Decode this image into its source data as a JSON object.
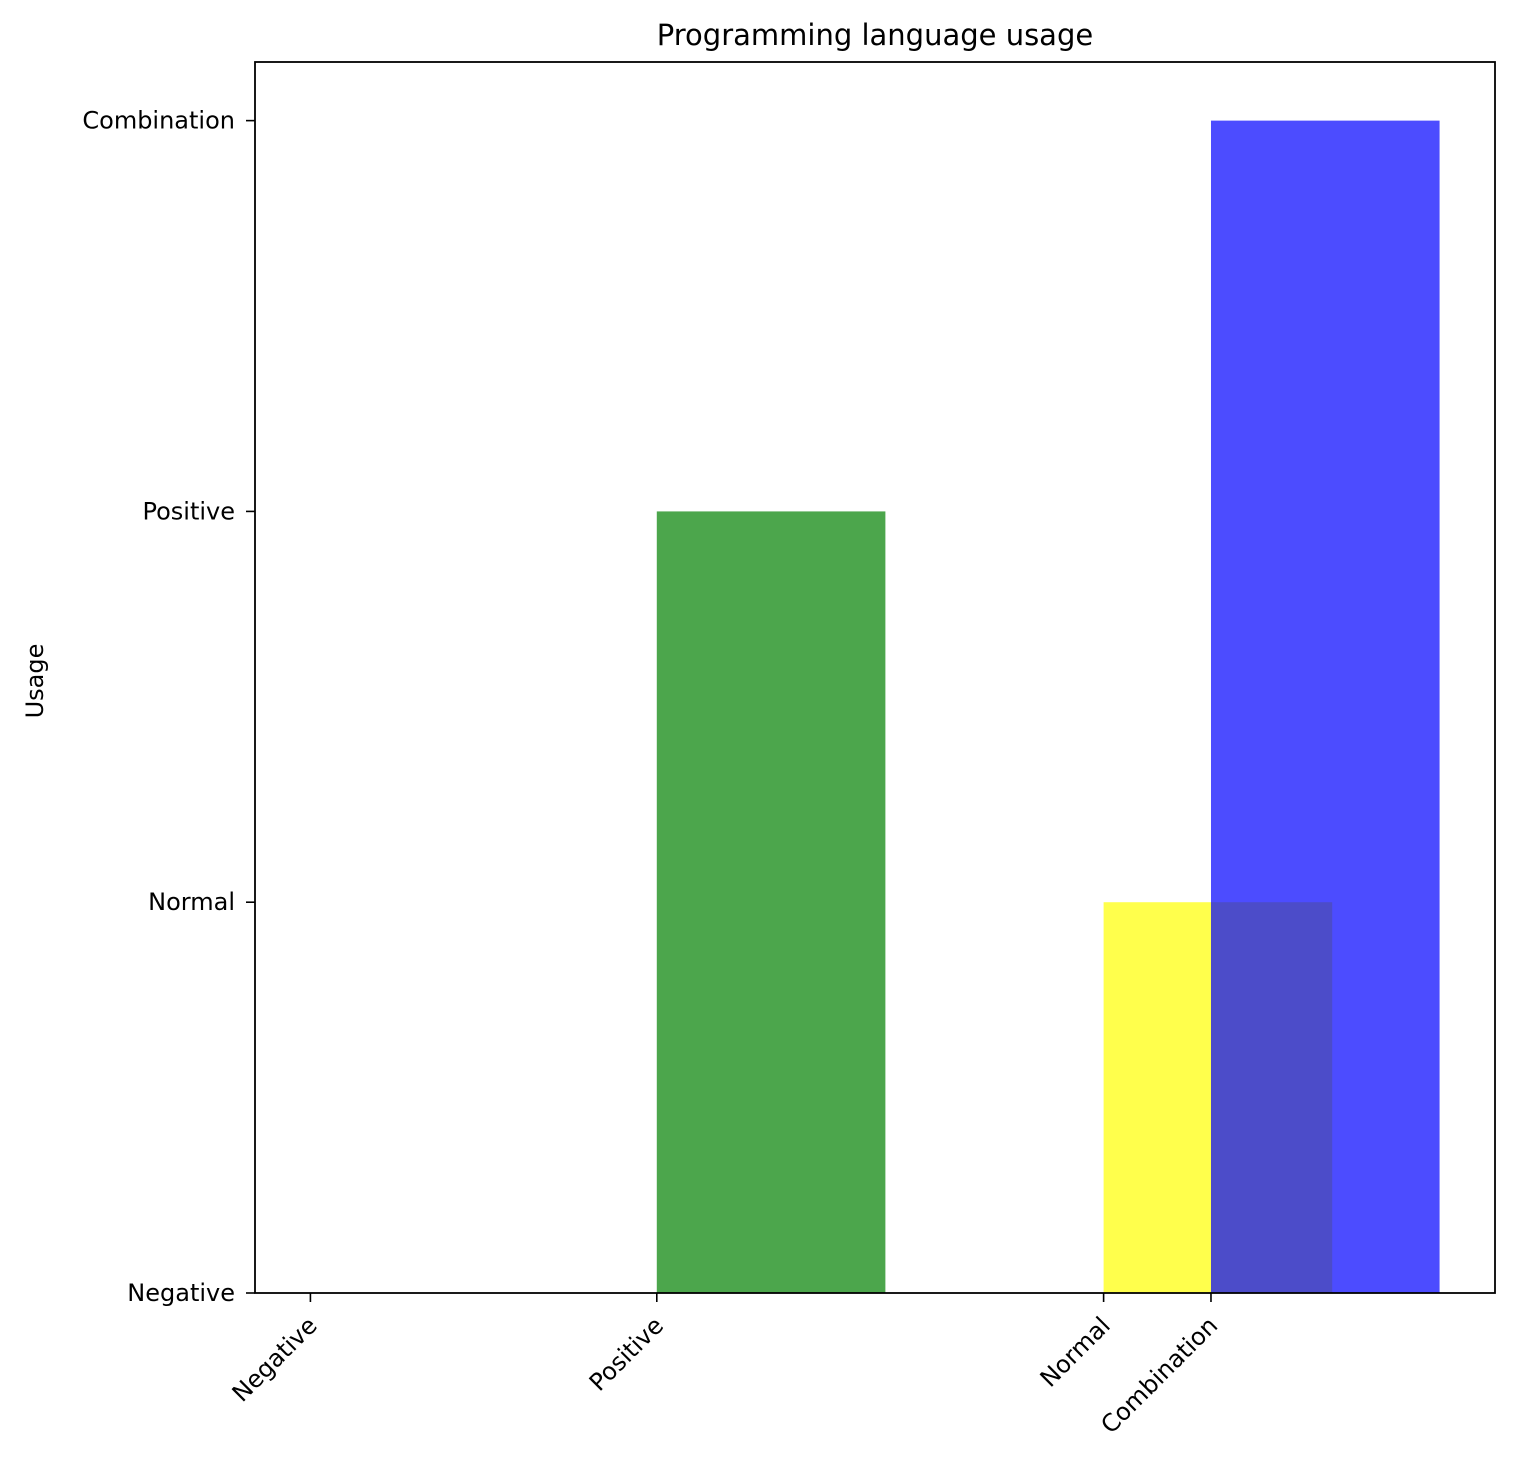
{
  "chart_data": {
    "type": "bar",
    "title": "Programming language usage",
    "xlabel": "",
    "ylabel": "Usage",
    "grid": false,
    "x_ticks": [
      {
        "label": "Negative",
        "value": 0
      },
      {
        "label": "Positive",
        "value": 1
      },
      {
        "label": "Normal",
        "value": 2.29
      },
      {
        "label": "Combination",
        "value": 2.6
      }
    ],
    "y_ticks": [
      {
        "label": "Negative",
        "value": 0
      },
      {
        "label": "Normal",
        "value": 1
      },
      {
        "label": "Positive",
        "value": 2
      },
      {
        "label": "Combination",
        "value": 3
      }
    ],
    "xlim": [
      -0.16,
      3.42
    ],
    "ylim": [
      0,
      3.15
    ],
    "bar_width": 0.66,
    "bars": [
      {
        "x": 0,
        "value": 0,
        "color": "#008000"
      },
      {
        "x": 1,
        "value": 2,
        "color": "#008000"
      },
      {
        "x": 2.29,
        "value": 1,
        "color": "#ffff00"
      },
      {
        "x": 2.6,
        "value": 3,
        "color": "#0000ff"
      }
    ],
    "bar_opacity": 0.7
  }
}
